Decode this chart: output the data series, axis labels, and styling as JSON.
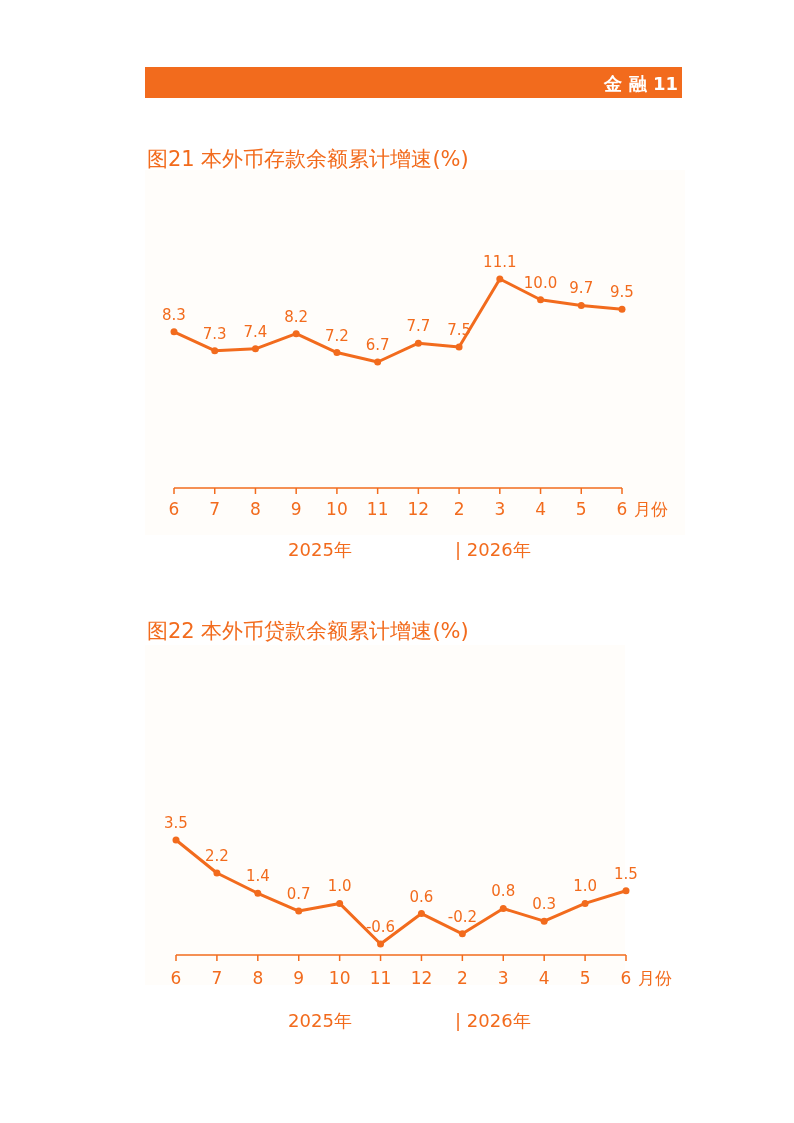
{
  "chart_data": [
    {
      "type": "line",
      "title": "图21  本外币存款余额累计增速(%)",
      "xlabel": "月份",
      "categories": [
        "6",
        "7",
        "8",
        "9",
        "10",
        "11",
        "12",
        "2",
        "3",
        "4",
        "5",
        "6"
      ],
      "values": [
        8.3,
        7.3,
        7.4,
        8.2,
        7.2,
        6.7,
        7.7,
        7.5,
        11.1,
        10.0,
        9.7,
        9.5
      ],
      "value_labels": [
        "8.3",
        "7.3",
        "7.4",
        "8.2",
        "7.2",
        "6.7",
        "7.7",
        "7.5",
        "11.1",
        "10.0",
        "9.7",
        "9.5"
      ],
      "color": "#f26b1d",
      "marker": "circle",
      "annotations": [
        "2025年",
        "| 2026年",
        "金  融  11"
      ]
    },
    {
      "type": "line",
      "title": "图22  本外币贷款余额累计增速(%)",
      "xlabel": "月份",
      "categories": [
        "6",
        "7",
        "8",
        "9",
        "10",
        "11",
        "12",
        "2",
        "3",
        "4",
        "5",
        "6"
      ],
      "values": [
        3.5,
        2.2,
        1.4,
        0.7,
        1.0,
        -0.6,
        0.6,
        -0.2,
        0.8,
        0.3,
        1.0,
        1.5
      ],
      "value_labels": [
        "3.5",
        "2.2",
        "1.4",
        "0.7",
        "1.0",
        "-0.6",
        "0.6",
        "-0.2",
        "0.8",
        "0.3",
        "1.0",
        "1.5"
      ],
      "color": "#f26b1d",
      "marker": "circle",
      "annotations": [
        "2025年",
        "| 2026年"
      ]
    }
  ]
}
